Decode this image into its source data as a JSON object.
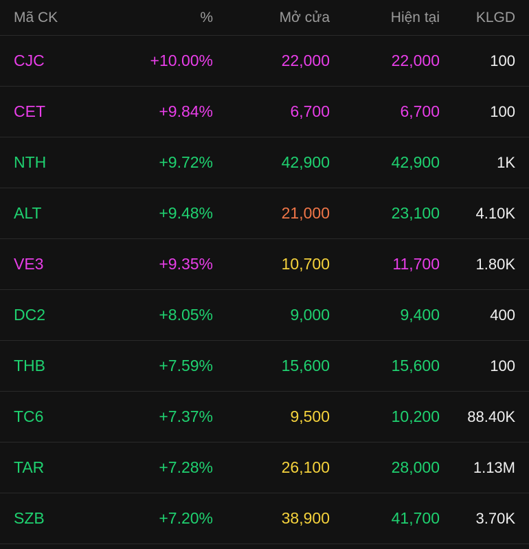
{
  "colors": {
    "background": "#121212",
    "divider": "#2a2a2a",
    "header_text": "#9b9b9b",
    "volume_text": "#f0f0f0",
    "magenta": "#e83ee8",
    "green": "#1fd170",
    "yellow": "#f5d23c",
    "orange": "#f07648"
  },
  "header": {
    "ticker": "Mã CK",
    "percent": "%",
    "open": "Mở cửa",
    "current": "Hiện tại",
    "volume": "KLGD"
  },
  "rows": [
    {
      "ticker": "CJC",
      "ticker_color": "magenta",
      "pct": "+10.00%",
      "pct_color": "magenta",
      "open": "22,000",
      "open_color": "magenta",
      "now": "22,000",
      "now_color": "magenta",
      "vol": "100"
    },
    {
      "ticker": "CET",
      "ticker_color": "magenta",
      "pct": "+9.84%",
      "pct_color": "magenta",
      "open": "6,700",
      "open_color": "magenta",
      "now": "6,700",
      "now_color": "magenta",
      "vol": "100"
    },
    {
      "ticker": "NTH",
      "ticker_color": "green",
      "pct": "+9.72%",
      "pct_color": "green",
      "open": "42,900",
      "open_color": "green",
      "now": "42,900",
      "now_color": "green",
      "vol": "1K"
    },
    {
      "ticker": "ALT",
      "ticker_color": "green",
      "pct": "+9.48%",
      "pct_color": "green",
      "open": "21,000",
      "open_color": "orange",
      "now": "23,100",
      "now_color": "green",
      "vol": "4.10K"
    },
    {
      "ticker": "VE3",
      "ticker_color": "magenta",
      "pct": "+9.35%",
      "pct_color": "magenta",
      "open": "10,700",
      "open_color": "yellow",
      "now": "11,700",
      "now_color": "magenta",
      "vol": "1.80K"
    },
    {
      "ticker": "DC2",
      "ticker_color": "green",
      "pct": "+8.05%",
      "pct_color": "green",
      "open": "9,000",
      "open_color": "green",
      "now": "9,400",
      "now_color": "green",
      "vol": "400"
    },
    {
      "ticker": "THB",
      "ticker_color": "green",
      "pct": "+7.59%",
      "pct_color": "green",
      "open": "15,600",
      "open_color": "green",
      "now": "15,600",
      "now_color": "green",
      "vol": "100"
    },
    {
      "ticker": "TC6",
      "ticker_color": "green",
      "pct": "+7.37%",
      "pct_color": "green",
      "open": "9,500",
      "open_color": "yellow",
      "now": "10,200",
      "now_color": "green",
      "vol": "88.40K"
    },
    {
      "ticker": "TAR",
      "ticker_color": "green",
      "pct": "+7.28%",
      "pct_color": "green",
      "open": "26,100",
      "open_color": "yellow",
      "now": "28,000",
      "now_color": "green",
      "vol": "1.13M"
    },
    {
      "ticker": "SZB",
      "ticker_color": "green",
      "pct": "+7.20%",
      "pct_color": "green",
      "open": "38,900",
      "open_color": "yellow",
      "now": "41,700",
      "now_color": "green",
      "vol": "3.70K"
    }
  ]
}
